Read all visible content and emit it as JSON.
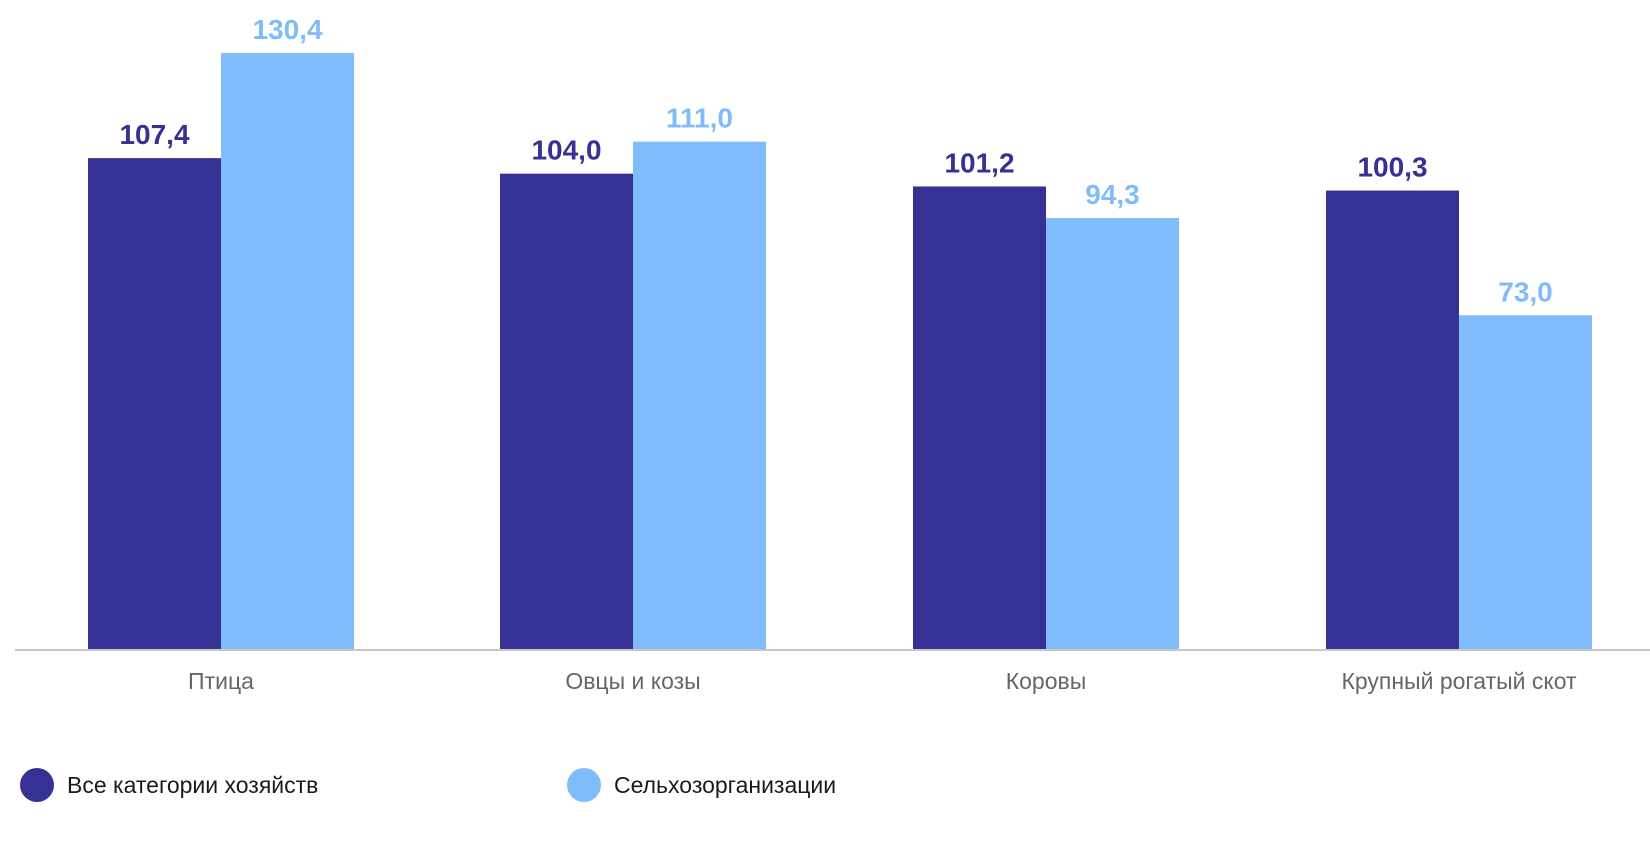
{
  "chart_data": {
    "type": "bar",
    "categories": [
      "Птица",
      "Овцы и козы",
      "Коровы",
      "Крупный рогатый скот"
    ],
    "series": [
      {
        "name": "Все категории хозяйств",
        "values": [
          107.4,
          104.0,
          101.2,
          100.3
        ],
        "labels": [
          "107,4",
          "104,0",
          "101,2",
          "100,3"
        ],
        "color": "#363195"
      },
      {
        "name": "Сельхозорганизации",
        "values": [
          130.4,
          111.0,
          94.3,
          73.0
        ],
        "labels": [
          "130,4",
          "111,0",
          "94,3",
          "73,0"
        ],
        "color": "#80BCFB"
      }
    ],
    "ylim": [
      0,
      130.4
    ],
    "grid": false,
    "legend_position": "bottom-left",
    "axis_color": "#c8c8c8",
    "tick_label_color": "#666666"
  }
}
